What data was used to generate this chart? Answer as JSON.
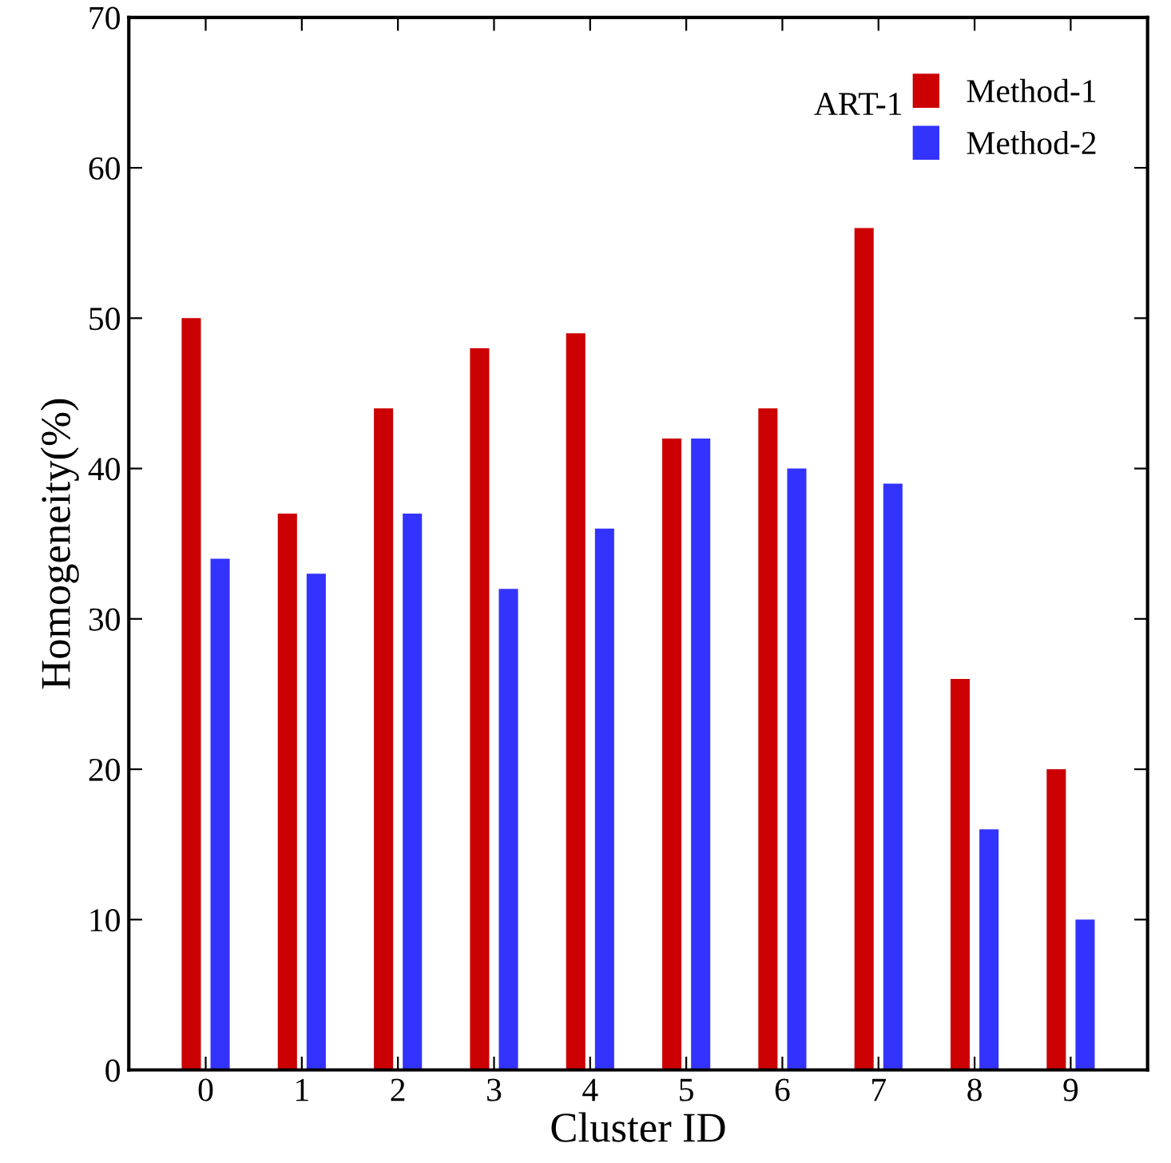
{
  "chart_data": {
    "type": "bar",
    "xlabel": "Cluster ID",
    "ylabel": "Homogeneity(%)",
    "legend_title": "ART-1",
    "legend": "top right",
    "categories": [
      "0",
      "1",
      "2",
      "3",
      "4",
      "5",
      "6",
      "7",
      "8",
      "9"
    ],
    "series": [
      {
        "name": "Method-1",
        "color": "#cc0000",
        "values": [
          50,
          37,
          44,
          48,
          49,
          42,
          44,
          56,
          26,
          20
        ]
      },
      {
        "name": "Method-2",
        "color": "#3333ff",
        "values": [
          34,
          33,
          37,
          32,
          36,
          42,
          40,
          39,
          16,
          10
        ]
      }
    ],
    "ylim": [
      0,
      70
    ],
    "yticks": [
      0,
      10,
      20,
      30,
      40,
      50,
      60,
      70
    ],
    "grid": false
  }
}
